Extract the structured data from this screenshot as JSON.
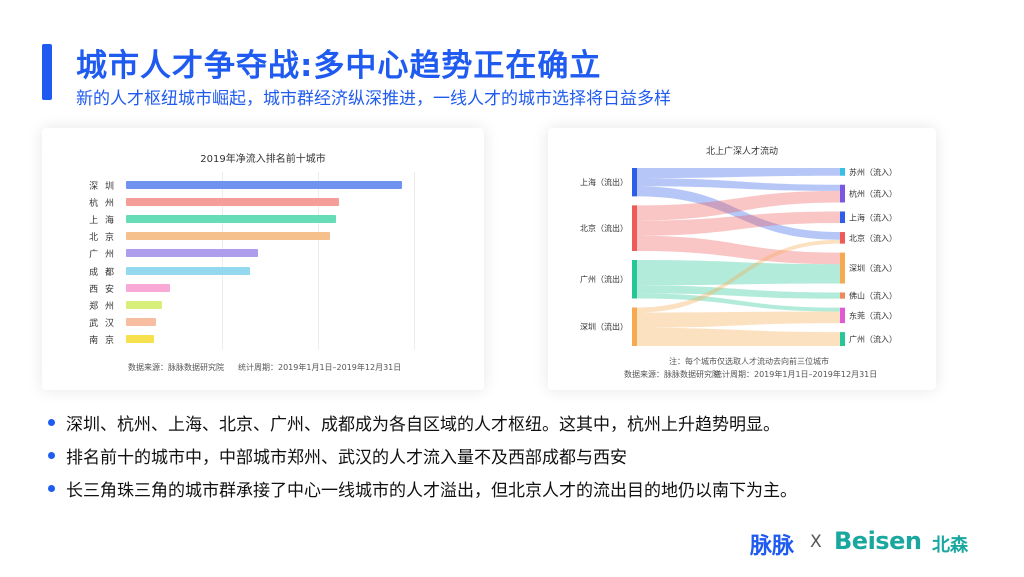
{
  "header": {
    "title": "城市人才争夺战:多中心趋势正在确立",
    "subtitle": "新的人才枢纽城市崛起，城市群经济纵深推进，一线人才的城市选择将日益多样"
  },
  "colors": {
    "accent": "#1f5bf0",
    "brand_beisen": "#1aa7a0"
  },
  "bar_chart": {
    "title": "2019年净流入排名前十城市",
    "source": "数据来源：脉脉数据研究院",
    "period": "统计周期：2019年1月1日–2019年12月31日"
  },
  "sankey_chart": {
    "title": "北上广深人才流动",
    "note": "注：每个城市仅选取人才流动去向前三位城市",
    "source": "数据来源：脉脉数据研究院",
    "period": "统计周期：2019年1月1日–2019年12月31日"
  },
  "chart_data": [
    {
      "type": "bar",
      "orientation": "horizontal",
      "title": "2019年净流入排名前十城市",
      "categories": [
        "深 圳",
        "杭 州",
        "上 海",
        "北 京",
        "广 州",
        "成 都",
        "西 安",
        "郑 州",
        "武 汉",
        "南 京"
      ],
      "values": [
        100,
        77,
        76,
        74,
        48,
        45,
        16,
        13,
        11,
        10
      ],
      "colors": [
        "#6f93ee",
        "#f59d98",
        "#66dcb7",
        "#f6c08c",
        "#ae9cec",
        "#93d8ec",
        "#f8a9d6",
        "#d6f07a",
        "#f7bea2",
        "#f7e04e"
      ],
      "xlim": [
        0,
        100
      ],
      "xlabel": "",
      "ylabel": "",
      "grid": true
    },
    {
      "type": "sankey",
      "title": "北上广深人才流动",
      "sources": [
        {
          "name": "上海（流出）",
          "color": "#2e5ee8"
        },
        {
          "name": "北京（流出）",
          "color": "#ee5a58"
        },
        {
          "name": "广州（流出）",
          "color": "#25c797"
        },
        {
          "name": "深圳（流出）",
          "color": "#f6a94e"
        }
      ],
      "targets": [
        {
          "name": "苏州（流入）",
          "color": "#36c0e6"
        },
        {
          "name": "杭州（流入）",
          "color": "#7a58e0"
        },
        {
          "name": "上海（流入）",
          "color": "#2e5ee8"
        },
        {
          "name": "北京（流入）",
          "color": "#ee5a58"
        },
        {
          "name": "深圳（流入）",
          "color": "#f6a94e"
        },
        {
          "name": "佛山（流入）",
          "color": "#ee8a5a"
        },
        {
          "name": "东莞（流入）",
          "color": "#e05ad8"
        },
        {
          "name": "广州（流入）",
          "color": "#25c797"
        }
      ],
      "links": [
        {
          "source": "上海（流出）",
          "target": "苏州（流入）",
          "value": 10
        },
        {
          "source": "上海（流出）",
          "target": "杭州（流入）",
          "value": 8
        },
        {
          "source": "上海（流出）",
          "target": "北京（流入）",
          "value": 10
        },
        {
          "source": "北京（流出）",
          "target": "杭州（流入）",
          "value": 15
        },
        {
          "source": "北京（流出）",
          "target": "上海（流入）",
          "value": 15
        },
        {
          "source": "北京（流出）",
          "target": "深圳（流入）",
          "value": 15
        },
        {
          "source": "广州（流出）",
          "target": "深圳（流入）",
          "value": 25
        },
        {
          "source": "广州（流出）",
          "target": "佛山（流入）",
          "value": 8
        },
        {
          "source": "广州（流出）",
          "target": "东莞（流入）",
          "value": 5
        },
        {
          "source": "深圳（流出）",
          "target": "北京（流入）",
          "value": 5
        },
        {
          "source": "深圳（流出）",
          "target": "东莞（流入）",
          "value": 15
        },
        {
          "source": "深圳（流出）",
          "target": "广州（流入）",
          "value": 18
        }
      ]
    }
  ],
  "bullets": [
    "深圳、杭州、上海、北京、广州、成都成为各自区域的人才枢纽。这其中，杭州上升趋势明显。",
    "排名前十的城市中，中部城市郑州、武汉的人才流入量不及西部成都与西安",
    "长三角珠三角的城市群承接了中心一线城市的人才溢出，但北京人才的流出目的地仍以南下为主。"
  ],
  "logos": {
    "maimai": "脉脉",
    "x": "X",
    "beisen": "Beisen",
    "beisen_cn": "北森"
  }
}
